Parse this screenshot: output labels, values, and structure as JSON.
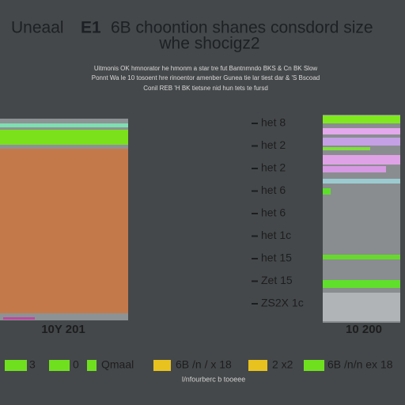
{
  "header": {
    "title_parts": [
      "Uneaal",
      "E1",
      "6B choontion shanes consdord size"
    ],
    "title_line2": "whe shocigz2",
    "subtitle_lines": [
      "Uitmonis OK hmnorator he hmonm a star tre fut Bantnmndo BKS & Cn BK Slow",
      "Ponnt Wa le 10 tosoent hre rinoentor amenber Gunea tie lar tiest dar & 'S Bscoad",
      "Conil REB 'H BK tietsne nid hun tets te fursd"
    ]
  },
  "left_panel": {
    "label": "10Y 201"
  },
  "right_panel": {
    "label": "10 200",
    "rows": [
      "het 8",
      "het 2",
      "het 2",
      "het 6",
      "het 6",
      "het 1c",
      "het 15",
      "Zet 15",
      "ZS2X 1c"
    ]
  },
  "legend": [
    "3",
    "0",
    "Qmaal",
    "6B /n / x 18",
    "2 x2",
    "6B /n/n ex 18"
  ],
  "footer": "I/nfourberc b tooeee"
}
